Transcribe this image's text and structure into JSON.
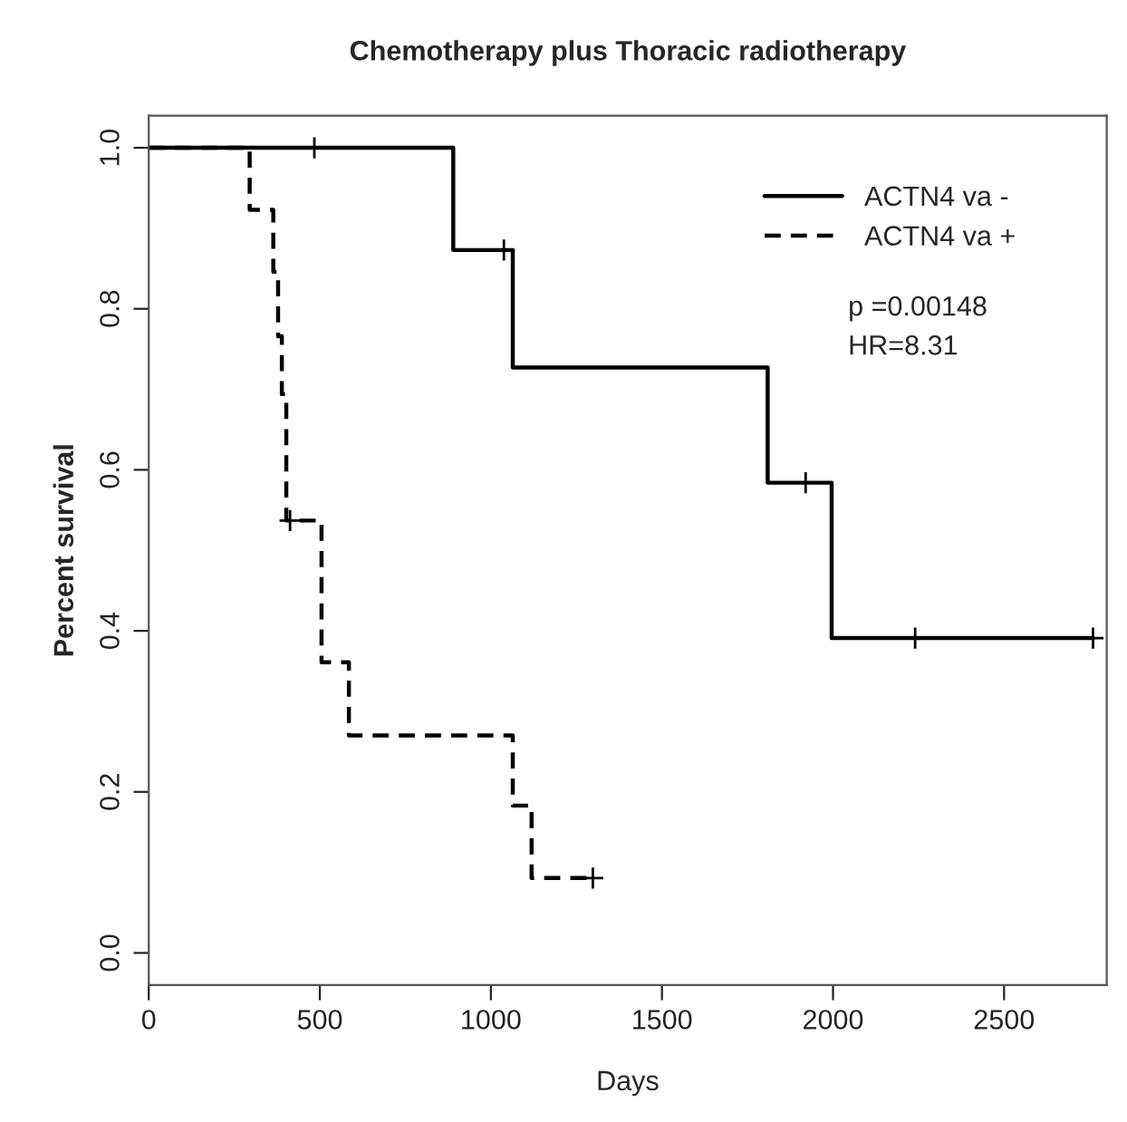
{
  "chart_data": {
    "type": "step",
    "title": "Chemotherapy plus Thoracic radiotherapy",
    "xlabel": "Days",
    "ylabel": "Percent survival",
    "series": [
      {
        "name": "ACTN4 va -",
        "color": "#000000",
        "line_style": "solid",
        "x": [
          0,
          890,
          1064,
          1809,
          1996,
          2760
        ],
        "values": [
          1.0,
          0.873,
          0.727,
          0.584,
          0.391,
          0.391
        ]
      },
      {
        "name": "ACTN4 va +",
        "color": "#000000",
        "line_style": "dashed",
        "x": [
          0,
          295,
          364,
          378,
          389,
          402,
          505,
          585,
          1064,
          1119,
          1298
        ],
        "values": [
          1.0,
          0.923,
          0.846,
          0.766,
          0.694,
          0.537,
          0.361,
          0.27,
          0.183,
          0.093,
          0.093
        ]
      },
      {
        "type": "scatter",
        "color": "#000000",
        "marker": "cross",
        "x": [
          484,
          1038,
          1920,
          2240,
          2760,
          413,
          1298
        ],
        "values": [
          1.0,
          0.873,
          0.584,
          0.391,
          0.391,
          0.537,
          0.093
        ]
      }
    ],
    "annotations": [
      "p =0.00148",
      "HR=8.31"
    ],
    "xlim": [
      0,
      2800
    ],
    "xticks": [
      0,
      500,
      1000,
      1500,
      2000,
      2500
    ],
    "ylim": [
      -0.04,
      1.04
    ],
    "yticks": [
      {
        "value": 0,
        "label": "0.0"
      },
      0.2,
      0.4,
      0.6,
      0.8,
      {
        "value": 1,
        "label": "1.0"
      }
    ],
    "legend": "top right",
    "grid": false
  }
}
